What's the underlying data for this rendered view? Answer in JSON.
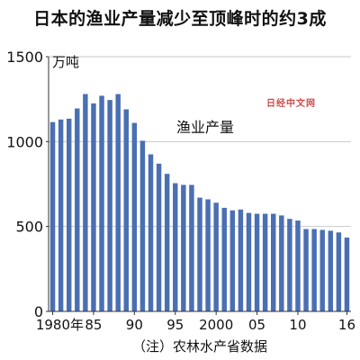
{
  "chart_data": {
    "type": "bar",
    "title": "日本的渔业产量减少至顶峰时的约3成",
    "unit_label": "万吨",
    "series_label": "渔业产量",
    "note": "（注）农林水产省数据",
    "watermark": "日经中文网",
    "bar_color": "#4a6fb3",
    "ylim": [
      0,
      1500
    ],
    "yticks": [
      0,
      500,
      1000,
      1500
    ],
    "years": [
      1980,
      1981,
      1982,
      1983,
      1984,
      1985,
      1986,
      1987,
      1988,
      1989,
      1990,
      1991,
      1992,
      1993,
      1994,
      1995,
      1996,
      1997,
      1998,
      1999,
      2000,
      2001,
      2002,
      2003,
      2004,
      2005,
      2006,
      2007,
      2008,
      2009,
      2010,
      2011,
      2012,
      2013,
      2014,
      2015,
      2016
    ],
    "values": [
      1115,
      1130,
      1135,
      1195,
      1280,
      1225,
      1270,
      1245,
      1280,
      1190,
      1110,
      1005,
      925,
      870,
      810,
      755,
      745,
      745,
      670,
      660,
      640,
      610,
      595,
      600,
      580,
      575,
      575,
      575,
      565,
      545,
      535,
      485,
      485,
      480,
      475,
      465,
      435
    ],
    "x_tick_labels": [
      {
        "year": 1980,
        "label": "1980年"
      },
      {
        "year": 1985,
        "label": "85"
      },
      {
        "year": 1990,
        "label": "90"
      },
      {
        "year": 1995,
        "label": "95"
      },
      {
        "year": 2000,
        "label": "2000"
      },
      {
        "year": 2005,
        "label": "05"
      },
      {
        "year": 2010,
        "label": "10"
      },
      {
        "year": 2016,
        "label": "16"
      }
    ]
  }
}
